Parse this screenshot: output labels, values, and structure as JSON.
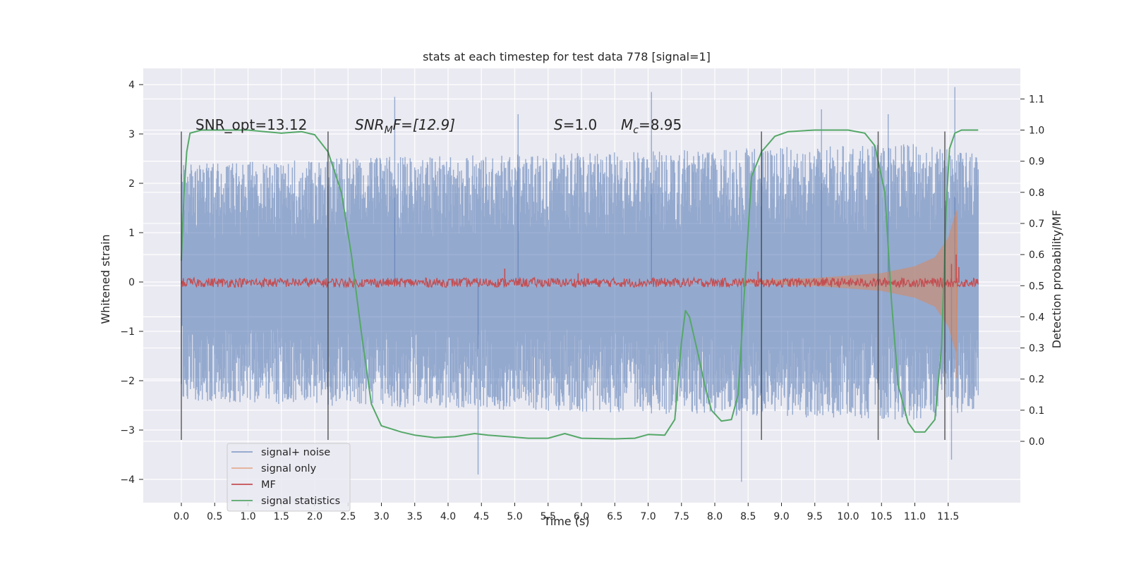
{
  "chart_data": {
    "type": "line",
    "title": "stats at each timestep for test data 778 [signal=1]",
    "xlabel": "Time (s)",
    "ylabel_left": "Whitened strain",
    "ylabel_right": "Detection probability/MF",
    "xlim": [
      -0.58,
      12.6
    ],
    "ylim_left": [
      -4.5,
      4.35
    ],
    "ylim_right": [
      -0.2,
      1.2
    ],
    "x_ticks": [
      0.0,
      0.5,
      1.0,
      1.5,
      2.0,
      2.5,
      3.0,
      3.5,
      4.0,
      4.5,
      5.0,
      5.5,
      6.0,
      6.5,
      7.0,
      7.5,
      8.0,
      8.5,
      9.0,
      9.5,
      10.0,
      10.5,
      11.0,
      11.5
    ],
    "x_tick_labels": [
      "0.0",
      "0.5",
      "1.0",
      "1.5",
      "2.0",
      "2.5",
      "3.0",
      "3.5",
      "4.0",
      "4.5",
      "5.0",
      "5.5",
      "6.0",
      "6.5",
      "7.0",
      "7.5",
      "8.0",
      "8.5",
      "9.0",
      "9.5",
      "10.0",
      "10.5",
      "11.0",
      "11.5"
    ],
    "y_left_ticks": [
      -4,
      -3,
      -2,
      -1,
      0,
      1,
      2,
      3,
      4
    ],
    "y_left_tick_labels": [
      "−4",
      "−3",
      "−2",
      "−1",
      "0",
      "1",
      "2",
      "3",
      "4"
    ],
    "y_right_ticks": [
      0.0,
      0.1,
      0.2,
      0.3,
      0.4,
      0.5,
      0.6,
      0.7,
      0.8,
      0.9,
      1.0,
      1.1
    ],
    "y_right_tick_labels": [
      "0.0",
      "0.1",
      "0.2",
      "0.3",
      "0.4",
      "0.5",
      "0.6",
      "0.7",
      "0.8",
      "0.9",
      "1.0",
      "1.1"
    ],
    "grid": true,
    "legend_position": "lower-left",
    "background": "#eaeaf2",
    "series": [
      {
        "name": "signal+ noise",
        "axis": "left",
        "color": "#4c72b0",
        "style": "noise-band",
        "x_range": [
          0.0,
          11.95
        ],
        "envelope": [
          [
            0.0,
            2.4
          ],
          [
            2.0,
            2.5
          ],
          [
            5.0,
            2.6
          ],
          [
            8.0,
            2.7
          ],
          [
            11.0,
            2.8
          ],
          [
            11.95,
            2.6
          ]
        ],
        "peaks": [
          [
            3.2,
            3.75
          ],
          [
            4.45,
            -3.9
          ],
          [
            7.05,
            3.85
          ],
          [
            8.4,
            -4.05
          ],
          [
            11.6,
            3.95
          ],
          [
            11.55,
            -3.6
          ],
          [
            9.6,
            3.5
          ],
          [
            10.6,
            3.4
          ],
          [
            5.05,
            3.4
          ]
        ]
      },
      {
        "name": "signal only",
        "axis": "left",
        "color": "#dd8452",
        "style": "chirp",
        "x_range": [
          8.3,
          11.65
        ],
        "envelope": [
          [
            8.3,
            0.02
          ],
          [
            9.5,
            0.08
          ],
          [
            10.5,
            0.18
          ],
          [
            11.0,
            0.32
          ],
          [
            11.3,
            0.5
          ],
          [
            11.5,
            0.9
          ],
          [
            11.62,
            1.45
          ],
          [
            11.65,
            0.0
          ]
        ]
      },
      {
        "name": "MF",
        "axis": "right",
        "color": "#c44e52",
        "style": "noisy-line",
        "x_range": [
          0.0,
          11.95
        ],
        "level": 0.51,
        "spikes": [
          [
            4.85,
            0.555
          ],
          [
            5.95,
            0.54
          ],
          [
            8.65,
            0.545
          ],
          [
            11.55,
            0.57
          ],
          [
            11.62,
            0.6
          ],
          [
            11.66,
            0.56
          ]
        ]
      },
      {
        "name": "signal statistics",
        "axis": "right",
        "color": "#55a868",
        "style": "line",
        "points": [
          [
            0.0,
            0.58
          ],
          [
            0.04,
            0.8
          ],
          [
            0.08,
            0.93
          ],
          [
            0.13,
            0.99
          ],
          [
            0.3,
            1.0
          ],
          [
            1.0,
            1.0
          ],
          [
            1.5,
            0.99
          ],
          [
            1.8,
            0.995
          ],
          [
            2.0,
            0.985
          ],
          [
            2.2,
            0.93
          ],
          [
            2.4,
            0.8
          ],
          [
            2.55,
            0.6
          ],
          [
            2.7,
            0.35
          ],
          [
            2.85,
            0.12
          ],
          [
            3.0,
            0.05
          ],
          [
            3.3,
            0.03
          ],
          [
            3.5,
            0.02
          ],
          [
            3.8,
            0.012
          ],
          [
            4.1,
            0.015
          ],
          [
            4.4,
            0.025
          ],
          [
            4.6,
            0.02
          ],
          [
            4.9,
            0.015
          ],
          [
            5.2,
            0.01
          ],
          [
            5.5,
            0.01
          ],
          [
            5.75,
            0.025
          ],
          [
            6.0,
            0.01
          ],
          [
            6.5,
            0.008
          ],
          [
            6.8,
            0.01
          ],
          [
            7.0,
            0.022
          ],
          [
            7.25,
            0.02
          ],
          [
            7.4,
            0.07
          ],
          [
            7.5,
            0.32
          ],
          [
            7.56,
            0.42
          ],
          [
            7.62,
            0.4
          ],
          [
            7.75,
            0.28
          ],
          [
            7.85,
            0.18
          ],
          [
            7.95,
            0.1
          ],
          [
            8.1,
            0.065
          ],
          [
            8.25,
            0.07
          ],
          [
            8.35,
            0.15
          ],
          [
            8.45,
            0.5
          ],
          [
            8.55,
            0.85
          ],
          [
            8.7,
            0.93
          ],
          [
            8.9,
            0.98
          ],
          [
            9.1,
            0.995
          ],
          [
            9.5,
            1.0
          ],
          [
            10.0,
            1.0
          ],
          [
            10.25,
            0.99
          ],
          [
            10.4,
            0.95
          ],
          [
            10.55,
            0.8
          ],
          [
            10.65,
            0.45
          ],
          [
            10.75,
            0.18
          ],
          [
            10.9,
            0.06
          ],
          [
            11.0,
            0.03
          ],
          [
            11.15,
            0.03
          ],
          [
            11.3,
            0.07
          ],
          [
            11.4,
            0.3
          ],
          [
            11.47,
            0.75
          ],
          [
            11.52,
            0.94
          ],
          [
            11.6,
            0.99
          ],
          [
            11.7,
            1.0
          ],
          [
            11.95,
            1.0
          ]
        ]
      }
    ],
    "vertical_markers": [
      0.0,
      2.2,
      8.7,
      10.45,
      11.45
    ],
    "vertical_marker_range": [
      -3.2,
      3.05
    ],
    "annotations": [
      {
        "text": "SNR_opt=13.12",
        "x": 0.2,
        "y": 3.05,
        "italic_part": ""
      },
      {
        "text": "SNR_MF=[12.9]",
        "x": 2.6,
        "y": 3.05,
        "math": "SNR_MF"
      },
      {
        "text": "S=1.0",
        "x": 5.6,
        "y": 3.05,
        "math": "S"
      },
      {
        "text": "M_c=8.95",
        "x": 6.6,
        "y": 3.05,
        "math": "M_c"
      }
    ]
  },
  "legend": {
    "items": [
      {
        "label": "signal+ noise",
        "color": "#4c72b0"
      },
      {
        "label": "signal only",
        "color": "#dd8452"
      },
      {
        "label": "MF",
        "color": "#c44e52"
      },
      {
        "label": "signal statistics",
        "color": "#55a868"
      }
    ]
  },
  "annotation_text": {
    "snr_opt": "SNR_opt=13.12",
    "snr_mf_main": "SNR",
    "snr_mf_sub": "M",
    "snr_mf_rest": "F=[12.9]",
    "s_sym": "S",
    "s_rest": "=1.0",
    "mc_sym": "M",
    "mc_sub": "c",
    "mc_rest": "=8.95"
  }
}
